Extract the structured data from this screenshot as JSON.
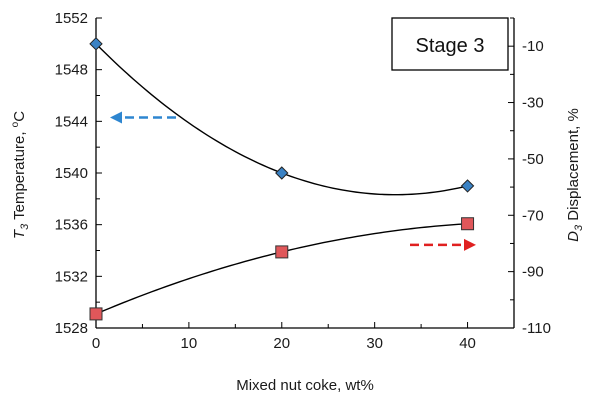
{
  "chart_data": {
    "type": "scatter",
    "annotation": "Stage 3",
    "x": [
      0,
      20,
      40
    ],
    "xlabel": "Mixed nut coke, wt%",
    "xlim": [
      0,
      45
    ],
    "xticks": [
      0,
      10,
      20,
      30,
      40
    ],
    "y_left": {
      "label_symbol": "T",
      "label_subscript": "3",
      "label_text": " Temperature, ",
      "label_unit_sup": "o",
      "label_unit": "C",
      "lim": [
        1528,
        1552
      ],
      "ticks": [
        1528,
        1532,
        1536,
        1540,
        1544,
        1548,
        1552
      ]
    },
    "y_right": {
      "label_symbol": "D",
      "label_subscript": "3",
      "label_text": " Displacement, %",
      "lim": [
        -110,
        0
      ],
      "ticks": [
        -10,
        -30,
        -50,
        -70,
        -90,
        -110
      ]
    },
    "series": [
      {
        "axis": "left",
        "marker": "diamond",
        "color": "#3a82c4",
        "arrow_color": "#2e86d0",
        "arrow_direction": "left",
        "values": [
          1550,
          1540,
          1539
        ]
      },
      {
        "axis": "right",
        "marker": "square",
        "color": "#e0575a",
        "arrow_color": "#e02020",
        "arrow_direction": "right",
        "values": [
          -105,
          -83,
          -73
        ]
      }
    ],
    "grid": false,
    "trendline": "polynomial"
  }
}
